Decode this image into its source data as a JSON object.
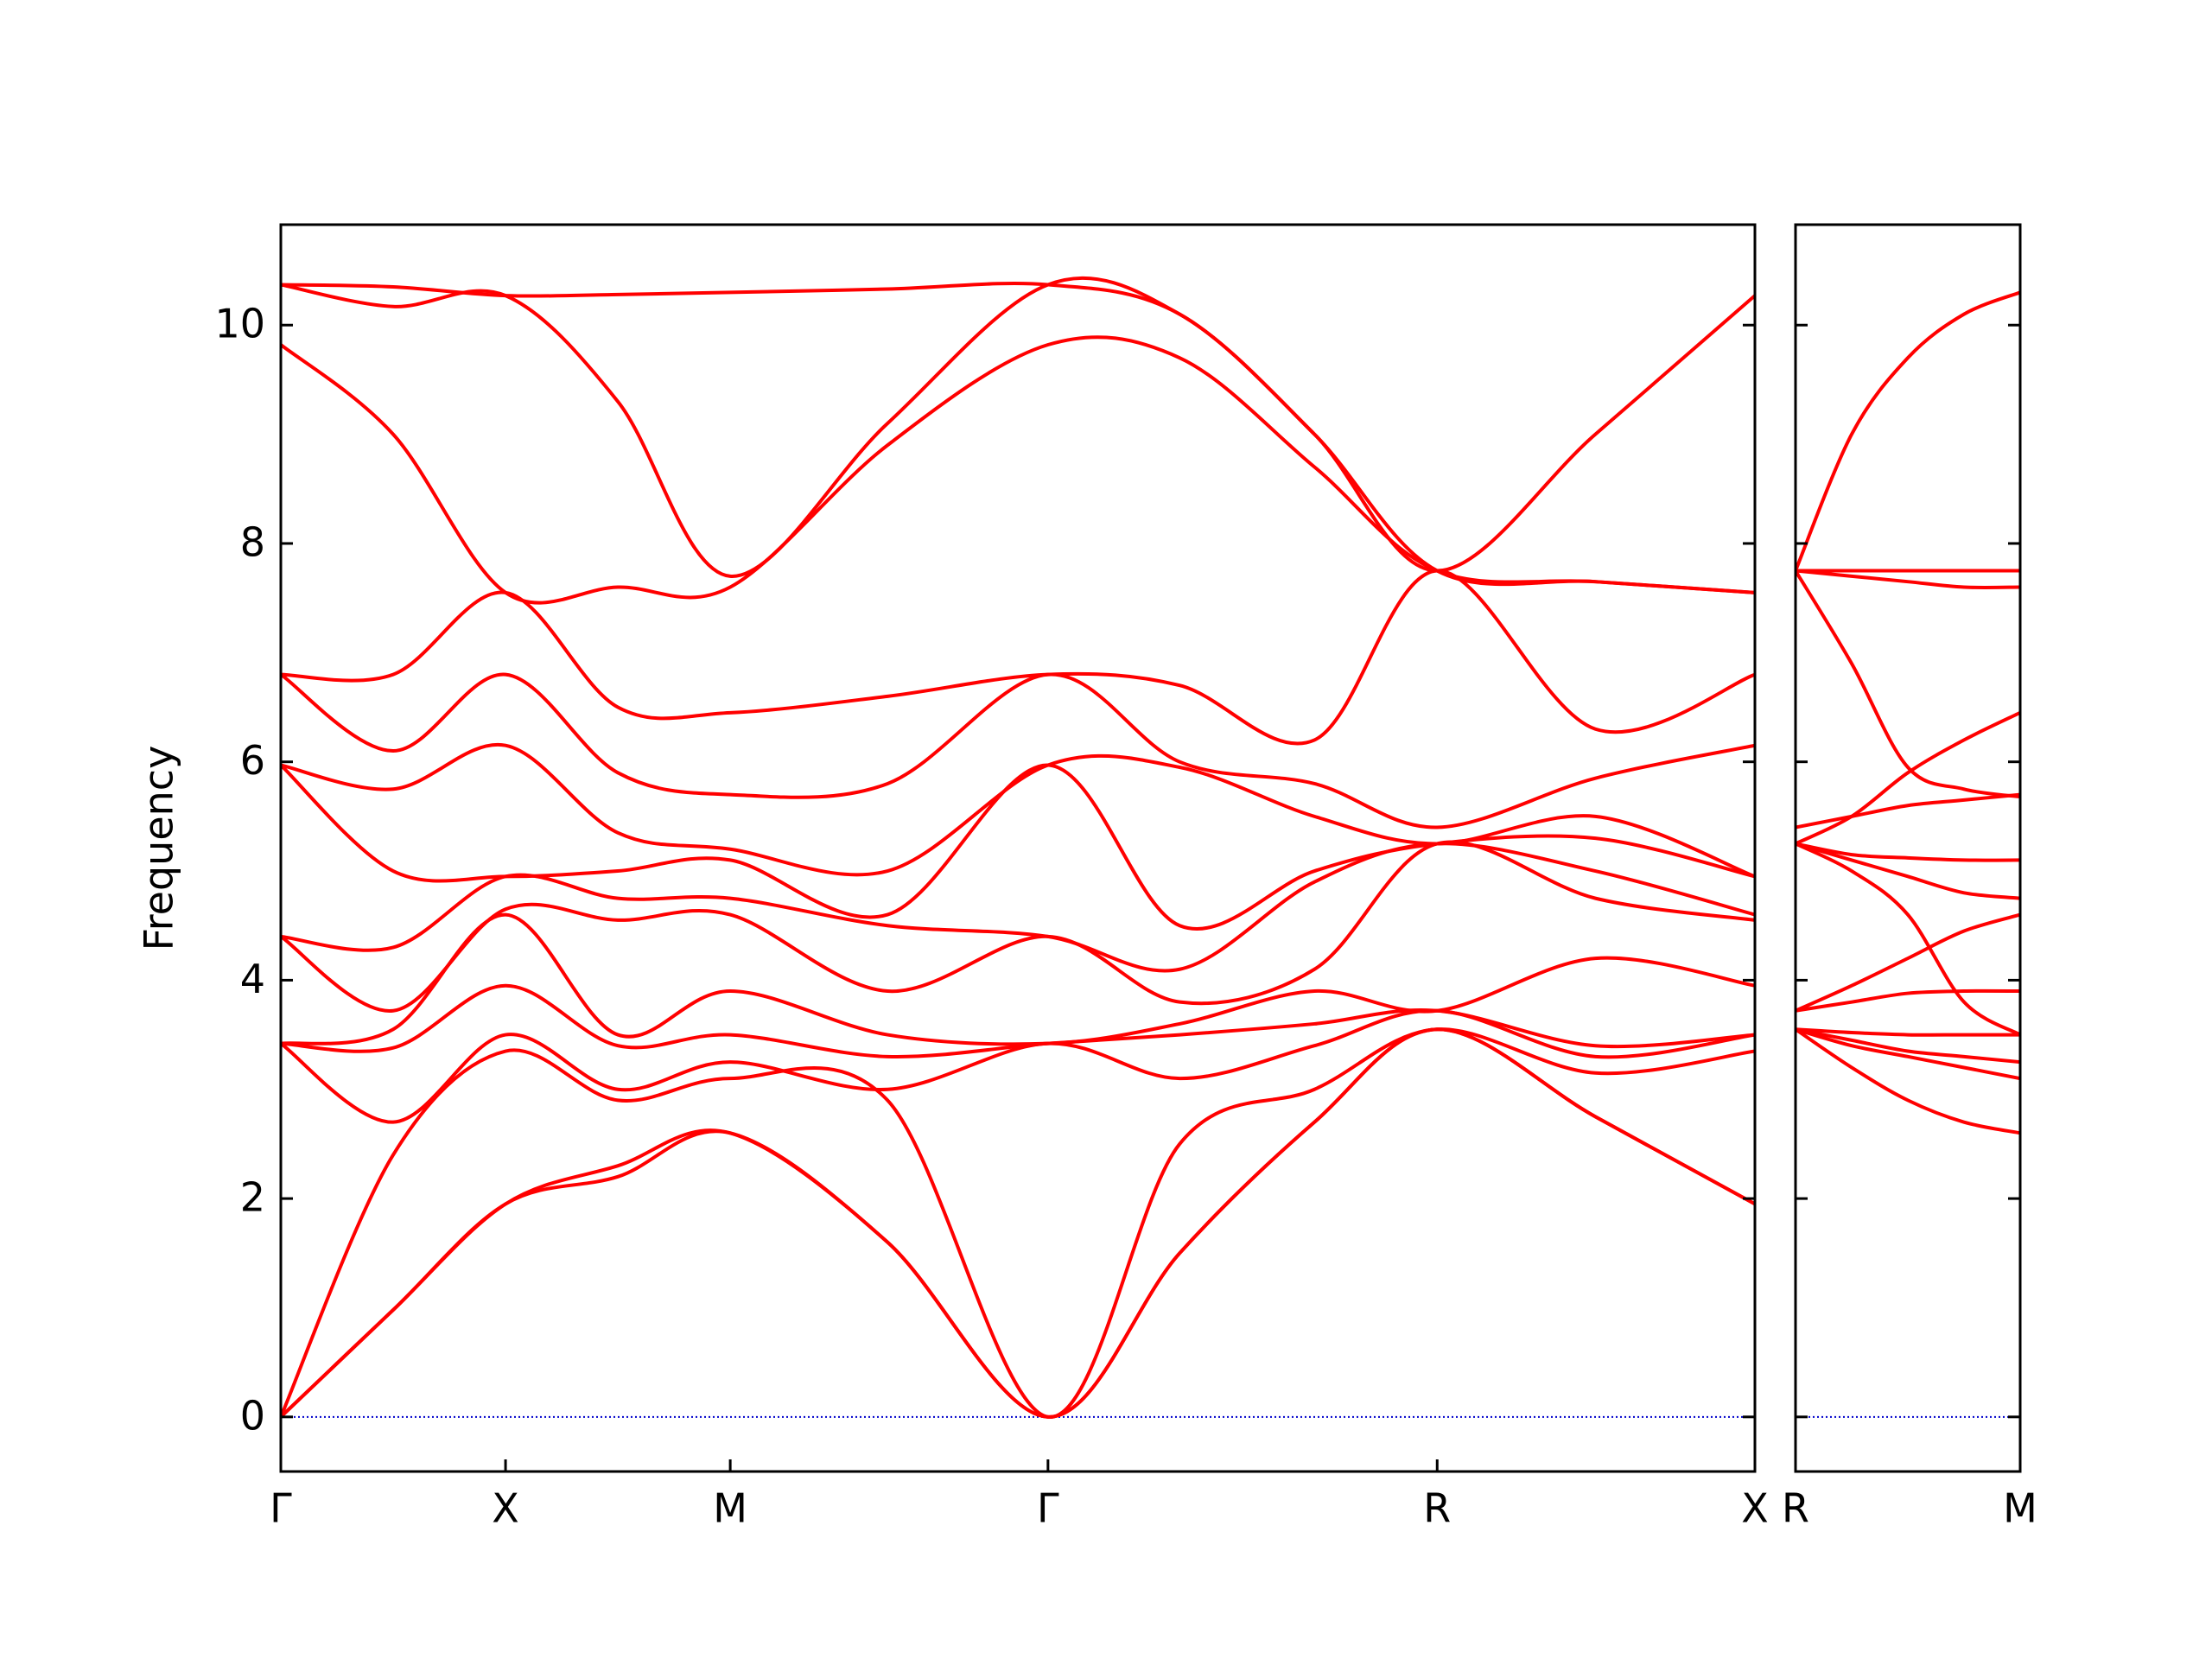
{
  "chart_data": [
    {
      "type": "line",
      "ylabel": "Frequency",
      "x": [
        0,
        0.5,
        1,
        1.5,
        2,
        2.7,
        3.414,
        4,
        4.6,
        5.146,
        5.85,
        6.56
      ],
      "xlim": [
        0,
        6.56
      ],
      "xticks": [
        {
          "value": 0,
          "label": "Γ"
        },
        {
          "value": 1,
          "label": "X"
        },
        {
          "value": 2,
          "label": "M"
        },
        {
          "value": 3.414,
          "label": "Γ"
        },
        {
          "value": 5.146,
          "label": "R"
        },
        {
          "value": 6.56,
          "label": "X"
        }
      ],
      "ylim": [
        -0.5,
        10.92
      ],
      "yticks": [
        0,
        2,
        4,
        6,
        8,
        10
      ],
      "ytick_labels": true,
      "zero_line": {
        "value": 0,
        "color": "#0000cc"
      },
      "series": [
        {
          "color": "#ff0000",
          "values": [
            0,
            0.98,
            1.95,
            2.2,
            2.6,
            1.6,
            0,
            1.5,
            2.7,
            3.55,
            2.75,
            1.95
          ]
        },
        {
          "color": "#ff0000",
          "values": [
            0,
            0.98,
            1.95,
            2.3,
            2.6,
            1.6,
            0,
            1.5,
            2.7,
            3.55,
            2.75,
            1.95
          ]
        },
        {
          "color": "#ff0000",
          "values": [
            0,
            2.4,
            3.35,
            2.9,
            3.1,
            2.9,
            0,
            2.5,
            3.0,
            3.55,
            3.15,
            3.35
          ]
        },
        {
          "color": "#ff0000",
          "values": [
            3.42,
            2.7,
            3.5,
            3.0,
            3.25,
            3.0,
            3.42,
            3.1,
            3.4,
            3.72,
            3.3,
            3.5
          ]
        },
        {
          "color": "#ff0000",
          "values": [
            3.42,
            3.38,
            3.95,
            3.4,
            3.5,
            3.3,
            3.42,
            3.5,
            3.6,
            3.72,
            3.4,
            3.5
          ]
        },
        {
          "color": "#ff0000",
          "values": [
            3.42,
            3.55,
            4.6,
            3.5,
            3.9,
            3.5,
            3.42,
            3.6,
            3.9,
            3.72,
            4.2,
            3.95
          ]
        },
        {
          "color": "#ff0000",
          "values": [
            4.4,
            3.72,
            4.65,
            4.55,
            4.6,
            3.9,
            4.4,
            3.8,
            4.1,
            5.25,
            4.75,
            4.55
          ]
        },
        {
          "color": "#ff0000",
          "values": [
            4.4,
            4.3,
            4.95,
            4.75,
            4.75,
            4.5,
            4.4,
            4.1,
            4.9,
            5.25,
            5.0,
            4.6
          ]
        },
        {
          "color": "#ff0000",
          "values": [
            5.97,
            5.0,
            4.95,
            5.0,
            5.1,
            4.6,
            5.97,
            4.5,
            5.0,
            5.25,
            5.3,
            4.95
          ]
        },
        {
          "color": "#ff0000",
          "values": [
            5.97,
            5.75,
            6.15,
            5.35,
            5.2,
            5.0,
            5.97,
            5.95,
            5.5,
            5.25,
            5.5,
            4.95
          ]
        },
        {
          "color": "#ff0000",
          "values": [
            6.8,
            6.1,
            6.8,
            5.9,
            5.7,
            5.8,
            6.8,
            6.0,
            5.8,
            5.4,
            5.85,
            6.15
          ]
        },
        {
          "color": "#ff0000",
          "values": [
            6.8,
            6.8,
            7.55,
            6.5,
            6.45,
            6.6,
            6.8,
            6.7,
            6.2,
            7.75,
            6.3,
            6.8
          ]
        },
        {
          "color": "#ff0000",
          "values": [
            9.82,
            9.0,
            7.55,
            7.6,
            7.6,
            8.9,
            9.82,
            9.7,
            8.7,
            7.75,
            7.65,
            7.55
          ]
        },
        {
          "color": "#ff0000",
          "values": [
            10.37,
            10.17,
            10.27,
            9.3,
            7.7,
            9.1,
            10.37,
            10.1,
            9.0,
            7.75,
            7.65,
            7.55
          ]
        },
        {
          "color": "#ff0000",
          "values": [
            10.37,
            10.35,
            10.27,
            10.28,
            10.3,
            10.33,
            10.37,
            10.1,
            9.0,
            7.75,
            9.0,
            10.27
          ]
        }
      ]
    },
    {
      "type": "line",
      "x": [
        0,
        0.25,
        0.5,
        0.75,
        1
      ],
      "xlim": [
        0,
        1
      ],
      "xticks": [
        {
          "value": 0,
          "label": "R"
        },
        {
          "value": 1,
          "label": "M"
        }
      ],
      "ylim": [
        -0.5,
        10.92
      ],
      "yticks": [
        0,
        2,
        4,
        6,
        8,
        10
      ],
      "ytick_labels": false,
      "zero_line": {
        "value": 0,
        "color": "#0000cc"
      },
      "series": [
        {
          "color": "#ff0000",
          "values": [
            3.55,
            3.2,
            2.9,
            2.7,
            2.6
          ]
        },
        {
          "color": "#ff0000",
          "values": [
            3.55,
            3.4,
            3.3,
            3.2,
            3.1
          ]
        },
        {
          "color": "#ff0000",
          "values": [
            3.55,
            3.45,
            3.35,
            3.3,
            3.25
          ]
        },
        {
          "color": "#ff0000",
          "values": [
            3.55,
            3.52,
            3.5,
            3.5,
            3.5
          ]
        },
        {
          "color": "#ff0000",
          "values": [
            3.72,
            3.8,
            3.88,
            3.9,
            3.9
          ]
        },
        {
          "color": "#ff0000",
          "values": [
            3.72,
            3.95,
            4.2,
            4.45,
            4.6
          ]
        },
        {
          "color": "#ff0000",
          "values": [
            5.25,
            5.0,
            4.6,
            3.8,
            3.5
          ]
        },
        {
          "color": "#ff0000",
          "values": [
            5.25,
            5.1,
            4.95,
            4.8,
            4.75
          ]
        },
        {
          "color": "#ff0000",
          "values": [
            5.25,
            5.15,
            5.12,
            5.1,
            5.1
          ]
        },
        {
          "color": "#ff0000",
          "values": [
            5.25,
            5.5,
            5.9,
            6.2,
            6.45
          ]
        },
        {
          "color": "#ff0000",
          "values": [
            5.4,
            5.5,
            5.6,
            5.65,
            5.7
          ]
        },
        {
          "color": "#ff0000",
          "values": [
            7.75,
            6.9,
            5.95,
            5.75,
            5.68
          ]
        },
        {
          "color": "#ff0000",
          "values": [
            7.75,
            7.7,
            7.65,
            7.6,
            7.6
          ]
        },
        {
          "color": "#ff0000",
          "values": [
            7.75,
            7.75,
            7.75,
            7.75,
            7.75
          ]
        },
        {
          "color": "#ff0000",
          "values": [
            7.75,
            9.0,
            9.7,
            10.1,
            10.3
          ]
        }
      ]
    }
  ]
}
